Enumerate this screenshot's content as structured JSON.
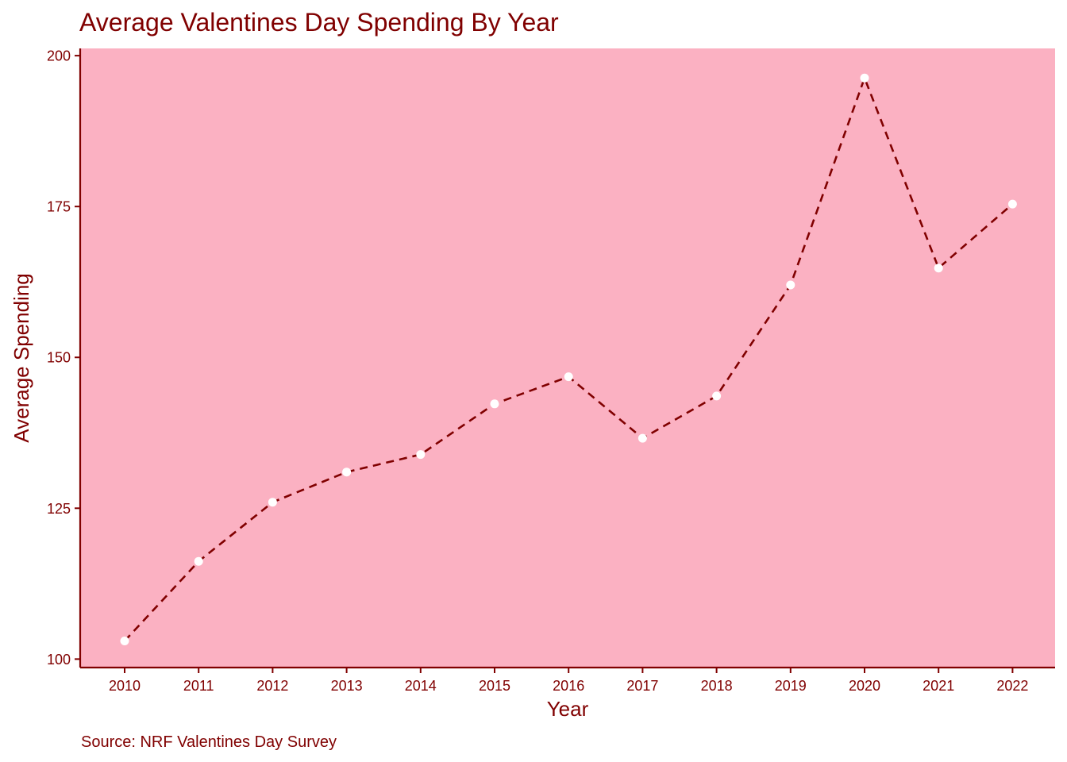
{
  "chart_data": {
    "type": "line",
    "title": "Average Valentines Day Spending By Year",
    "xlabel": "Year",
    "ylabel": "Average Spending",
    "caption": "Source: NRF Valentines Day Survey",
    "x": [
      "2010",
      "2011",
      "2012",
      "2013",
      "2014",
      "2015",
      "2016",
      "2017",
      "2018",
      "2019",
      "2020",
      "2021",
      "2022"
    ],
    "series": [
      {
        "values": [
          103.0,
          116.2,
          126.0,
          131.0,
          133.9,
          142.3,
          146.8,
          136.6,
          143.6,
          162.0,
          196.3,
          164.8,
          175.4
        ]
      }
    ],
    "yticks": [
      100,
      125,
      150,
      175,
      200
    ],
    "ylim": [
      98.6,
      201.2
    ],
    "grid": false,
    "line_style": "dashed",
    "colors": {
      "panel_background": "#fbb1c2",
      "line": "#800000",
      "point": "#ffffff",
      "axis": "#800000",
      "text": "#800000"
    }
  }
}
